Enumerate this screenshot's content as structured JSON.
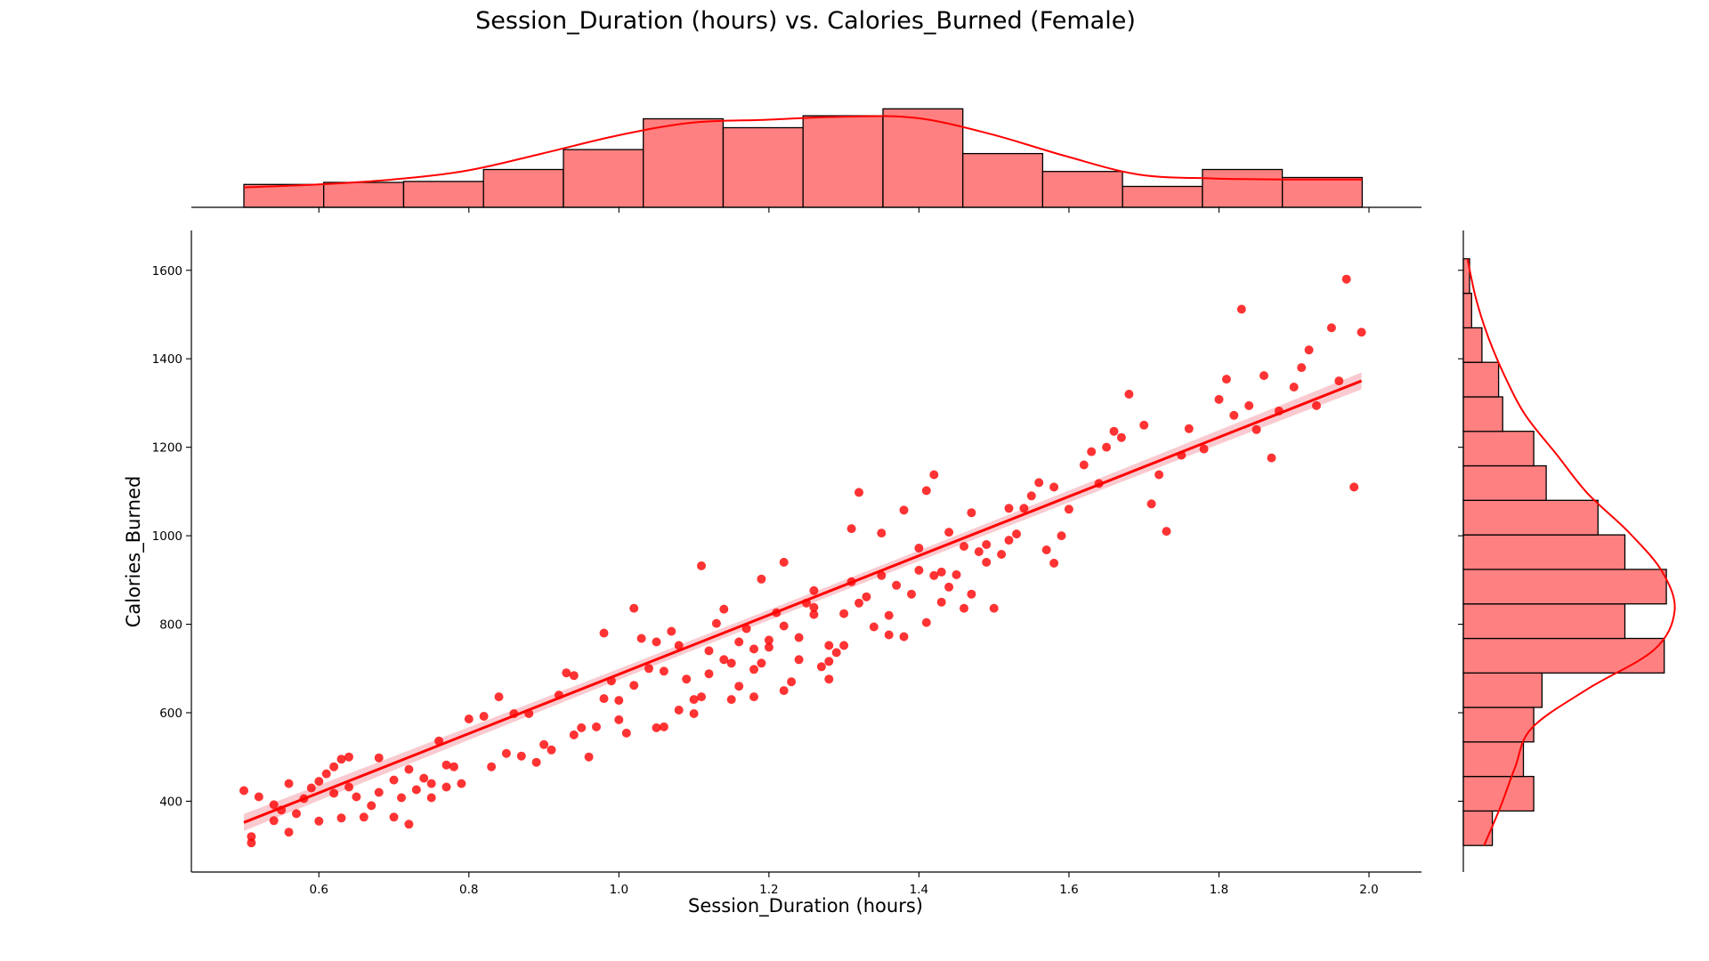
{
  "chart_data": {
    "type": "scatter",
    "title": "Session_Duration (hours) vs. Calories_Burned (Female)",
    "xlabel": "Session_Duration (hours)",
    "ylabel": "Calories_Burned",
    "xlim": [
      0.43,
      2.07
    ],
    "ylim": [
      240,
      1690
    ],
    "xticks": [
      0.6,
      0.8,
      1.0,
      1.2,
      1.4,
      1.6,
      1.8,
      2.0
    ],
    "yticks": [
      400,
      600,
      800,
      1000,
      1200,
      1400,
      1600
    ],
    "colors": {
      "points": "#ff0000",
      "line": "#ff0000",
      "band": "#f7b9c0",
      "bars": "#ff8080"
    },
    "grid": false,
    "regression": {
      "x": [
        0.5,
        1.99
      ],
      "y": [
        352,
        1350
      ],
      "ci": 12
    },
    "points": [
      [
        0.5,
        424
      ],
      [
        0.51,
        320
      ],
      [
        0.51,
        306
      ],
      [
        0.52,
        410
      ],
      [
        0.54,
        392
      ],
      [
        0.54,
        356
      ],
      [
        0.55,
        380
      ],
      [
        0.56,
        330
      ],
      [
        0.56,
        440
      ],
      [
        0.57,
        372
      ],
      [
        0.58,
        406
      ],
      [
        0.59,
        430
      ],
      [
        0.6,
        355
      ],
      [
        0.6,
        445
      ],
      [
        0.61,
        462
      ],
      [
        0.62,
        478
      ],
      [
        0.62,
        418
      ],
      [
        0.63,
        495
      ],
      [
        0.64,
        432
      ],
      [
        0.64,
        500
      ],
      [
        0.65,
        410
      ],
      [
        0.66,
        364
      ],
      [
        0.67,
        390
      ],
      [
        0.68,
        420
      ],
      [
        0.68,
        498
      ],
      [
        0.7,
        448
      ],
      [
        0.7,
        364
      ],
      [
        0.71,
        408
      ],
      [
        0.72,
        472
      ],
      [
        0.73,
        426
      ],
      [
        0.74,
        452
      ],
      [
        0.75,
        440
      ],
      [
        0.75,
        408
      ],
      [
        0.76,
        536
      ],
      [
        0.77,
        482
      ],
      [
        0.77,
        432
      ],
      [
        0.78,
        478
      ],
      [
        0.79,
        440
      ],
      [
        0.8,
        586
      ],
      [
        0.82,
        592
      ],
      [
        0.83,
        478
      ],
      [
        0.84,
        636
      ],
      [
        0.85,
        508
      ],
      [
        0.86,
        598
      ],
      [
        0.87,
        502
      ],
      [
        0.88,
        598
      ],
      [
        0.89,
        488
      ],
      [
        0.9,
        528
      ],
      [
        0.91,
        516
      ],
      [
        0.92,
        640
      ],
      [
        0.93,
        690
      ],
      [
        0.94,
        684
      ],
      [
        0.94,
        550
      ],
      [
        0.95,
        566
      ],
      [
        0.96,
        500
      ],
      [
        0.97,
        568
      ],
      [
        0.98,
        632
      ],
      [
        0.99,
        672
      ],
      [
        1.0,
        584
      ],
      [
        1.0,
        628
      ],
      [
        1.01,
        554
      ],
      [
        1.02,
        662
      ],
      [
        1.03,
        768
      ],
      [
        1.04,
        700
      ],
      [
        1.05,
        566
      ],
      [
        1.06,
        568
      ],
      [
        1.06,
        694
      ],
      [
        1.07,
        784
      ],
      [
        1.08,
        606
      ],
      [
        1.09,
        676
      ],
      [
        1.1,
        598
      ],
      [
        1.1,
        630
      ],
      [
        1.11,
        636
      ],
      [
        1.12,
        688
      ],
      [
        1.12,
        740
      ],
      [
        1.13,
        802
      ],
      [
        1.14,
        720
      ],
      [
        1.14,
        834
      ],
      [
        1.15,
        630
      ],
      [
        1.16,
        660
      ],
      [
        1.16,
        760
      ],
      [
        1.17,
        790
      ],
      [
        1.18,
        636
      ],
      [
        1.18,
        698
      ],
      [
        1.19,
        712
      ],
      [
        1.2,
        748
      ],
      [
        1.2,
        764
      ],
      [
        1.21,
        826
      ],
      [
        1.22,
        650
      ],
      [
        1.22,
        796
      ],
      [
        1.23,
        670
      ],
      [
        1.24,
        720
      ],
      [
        1.24,
        770
      ],
      [
        1.25,
        848
      ],
      [
        1.26,
        822
      ],
      [
        1.26,
        876
      ],
      [
        1.27,
        704
      ],
      [
        1.28,
        676
      ],
      [
        1.28,
        716
      ],
      [
        1.29,
        736
      ],
      [
        1.3,
        752
      ],
      [
        1.3,
        824
      ],
      [
        1.31,
        896
      ],
      [
        1.32,
        848
      ],
      [
        1.33,
        862
      ],
      [
        1.34,
        794
      ],
      [
        1.35,
        910
      ],
      [
        1.36,
        820
      ],
      [
        1.37,
        888
      ],
      [
        1.38,
        772
      ],
      [
        1.39,
        868
      ],
      [
        1.4,
        922
      ],
      [
        1.4,
        972
      ],
      [
        1.41,
        804
      ],
      [
        1.42,
        910
      ],
      [
        1.43,
        850
      ],
      [
        1.44,
        884
      ],
      [
        1.45,
        912
      ],
      [
        1.46,
        836
      ],
      [
        1.47,
        868
      ],
      [
        1.48,
        964
      ],
      [
        1.49,
        940
      ],
      [
        1.5,
        836
      ],
      [
        1.51,
        958
      ],
      [
        1.52,
        990
      ],
      [
        1.53,
        1004
      ],
      [
        1.54,
        1062
      ],
      [
        1.55,
        1090
      ],
      [
        1.56,
        1120
      ],
      [
        1.57,
        968
      ],
      [
        1.58,
        1110
      ],
      [
        1.59,
        1000
      ],
      [
        1.6,
        1060
      ],
      [
        1.62,
        1160
      ],
      [
        1.63,
        1190
      ],
      [
        1.65,
        1200
      ],
      [
        1.66,
        1236
      ],
      [
        1.67,
        1222
      ],
      [
        1.68,
        1320
      ],
      [
        1.7,
        1250
      ],
      [
        1.71,
        1072
      ],
      [
        1.72,
        1138
      ],
      [
        1.73,
        1010
      ],
      [
        1.75,
        1182
      ],
      [
        1.76,
        1242
      ],
      [
        1.78,
        1196
      ],
      [
        1.8,
        1308
      ],
      [
        1.81,
        1354
      ],
      [
        1.82,
        1272
      ],
      [
        1.84,
        1294
      ],
      [
        1.85,
        1240
      ],
      [
        1.86,
        1362
      ],
      [
        1.87,
        1176
      ],
      [
        1.88,
        1282
      ],
      [
        1.9,
        1336
      ],
      [
        1.91,
        1380
      ],
      [
        1.92,
        1420
      ],
      [
        1.93,
        1294
      ],
      [
        1.95,
        1470
      ],
      [
        1.96,
        1350
      ],
      [
        1.97,
        1580
      ],
      [
        1.98,
        1110
      ],
      [
        1.99,
        1460
      ],
      [
        0.63,
        362
      ],
      [
        0.72,
        348
      ],
      [
        1.28,
        752
      ],
      [
        1.43,
        918
      ],
      [
        1.47,
        1052
      ],
      [
        1.05,
        760
      ],
      [
        1.15,
        712
      ],
      [
        1.26,
        838
      ],
      [
        1.36,
        776
      ],
      [
        1.42,
        1138
      ],
      [
        1.49,
        980
      ],
      [
        1.08,
        752
      ],
      [
        1.18,
        744
      ],
      [
        1.31,
        1016
      ],
      [
        1.44,
        1008
      ],
      [
        1.58,
        938
      ],
      [
        1.02,
        836
      ],
      [
        1.11,
        932
      ],
      [
        1.32,
        1098
      ],
      [
        1.41,
        1102
      ],
      [
        0.98,
        780
      ],
      [
        1.22,
        940
      ],
      [
        1.38,
        1058
      ],
      [
        1.52,
        1062
      ],
      [
        1.19,
        902
      ],
      [
        1.35,
        1006
      ],
      [
        1.46,
        976
      ],
      [
        1.64,
        1118
      ],
      [
        1.83,
        1512
      ]
    ],
    "top_hist": {
      "bin_edges": [
        0.5,
        0.6065,
        0.713,
        0.8195,
        0.926,
        1.0325,
        1.139,
        1.2455,
        1.352,
        1.4585,
        1.565,
        1.6715,
        1.778,
        1.8845,
        1.991
      ],
      "counts": [
        23,
        25,
        26,
        38,
        58,
        89,
        80,
        92,
        99,
        54,
        36,
        21,
        38,
        30
      ],
      "count_max": 110,
      "kde_y": [
        20,
        23,
        28,
        37,
        54,
        72,
        85,
        88,
        91,
        90,
        74,
        52,
        33,
        29,
        28,
        28
      ]
    },
    "right_hist": {
      "bin_edges": [
        300,
        378,
        456,
        534,
        612,
        690,
        768,
        846,
        924,
        1002,
        1080,
        1158,
        1236,
        1314,
        1392,
        1470,
        1548,
        1626
      ],
      "counts": [
        14,
        34,
        29,
        34,
        38,
        97,
        78,
        98,
        78,
        65,
        40,
        34,
        19,
        17,
        9,
        4,
        3
      ],
      "count_max": 110,
      "kde_x": [
        10,
        18,
        25,
        33,
        60,
        92,
        102,
        96,
        80,
        60,
        45,
        30,
        20,
        12,
        6,
        2
      ]
    }
  }
}
